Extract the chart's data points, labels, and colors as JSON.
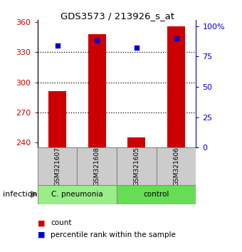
{
  "title": "GDS3573 / 213926_s_at",
  "samples": [
    "GSM321607",
    "GSM321608",
    "GSM321605",
    "GSM321606"
  ],
  "counts": [
    291,
    348,
    245,
    356
  ],
  "percentile_ranks": [
    84,
    88,
    82,
    90
  ],
  "ymin": 235,
  "ymax": 362,
  "yticks": [
    240,
    270,
    300,
    330,
    360
  ],
  "percentile_min": 0,
  "percentile_max": 105,
  "percentile_ticks": [
    0,
    25,
    50,
    75,
    100
  ],
  "percentile_tick_labels": [
    "0",
    "25",
    "50",
    "75",
    "100%"
  ],
  "bar_color": "#cc0000",
  "dot_color": "#0000cc",
  "left_tick_color": "#cc0000",
  "right_tick_color": "#0000cc",
  "groups": [
    {
      "label": "C. pneumonia",
      "samples": [
        0,
        1
      ],
      "color": "#99ee88"
    },
    {
      "label": "control",
      "samples": [
        2,
        3
      ],
      "color": "#66dd55"
    }
  ],
  "group_label": "infection",
  "legend_count_label": "count",
  "legend_pct_label": "percentile rank within the sample",
  "background_color": "#ffffff",
  "sample_box_color": "#cccccc",
  "bar_width": 0.45
}
